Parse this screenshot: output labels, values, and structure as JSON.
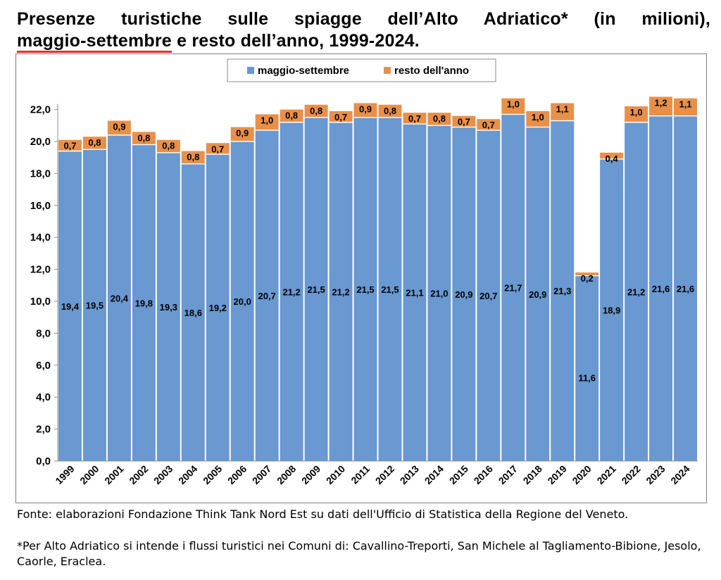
{
  "title": {
    "line1": "Presenze turistiche sulle spiagge dell’Alto Adriatico* (in milioni),",
    "line2_highlight": "maggio-settembre",
    "line2_rest": " e resto dell’anno, 1999-2024."
  },
  "colors": {
    "highlight_underline": "#e03030",
    "series_main": "#6a98d0",
    "series_rest": "#e8904a",
    "frame": "#7f7f7f"
  },
  "chart_data": {
    "type": "bar",
    "stacked": true,
    "categories": [
      "1999",
      "2000",
      "2001",
      "2002",
      "2003",
      "2004",
      "2005",
      "2006",
      "2007",
      "2008",
      "2009",
      "2010",
      "2011",
      "2012",
      "2013",
      "2014",
      "2015",
      "2016",
      "2017",
      "2018",
      "2019",
      "2020",
      "2021",
      "2022",
      "2023",
      "2024"
    ],
    "series": [
      {
        "name": "maggio-settembre",
        "color": "#6a98d0",
        "values": [
          19.4,
          19.5,
          20.4,
          19.8,
          19.3,
          18.6,
          19.2,
          20.0,
          20.7,
          21.2,
          21.5,
          21.2,
          21.5,
          21.5,
          21.1,
          21.0,
          20.9,
          20.7,
          21.7,
          20.9,
          21.3,
          11.6,
          18.9,
          21.2,
          21.6,
          21.6
        ]
      },
      {
        "name": "resto dell'anno",
        "color": "#e8904a",
        "values": [
          0.7,
          0.8,
          0.9,
          0.8,
          0.8,
          0.8,
          0.7,
          0.9,
          1.0,
          0.8,
          0.8,
          0.7,
          0.9,
          0.8,
          0.7,
          0.8,
          0.7,
          0.7,
          1.0,
          1.0,
          1.1,
          0.2,
          0.4,
          1.0,
          1.2,
          1.1
        ]
      }
    ],
    "ylim": [
      0,
      22
    ],
    "yticks": [
      0,
      2,
      4,
      6,
      8,
      10,
      12,
      14,
      16,
      18,
      20,
      22
    ],
    "ytick_labels": [
      "0,0",
      "2,0",
      "4,0",
      "6,0",
      "8,0",
      "10,0",
      "12,0",
      "14,0",
      "16,0",
      "18,0",
      "20,0",
      "22,0"
    ],
    "value_labels_main": [
      "19,4",
      "19,5",
      "20,4",
      "19,8",
      "19,3",
      "18,6",
      "19,2",
      "20,0",
      "20,7",
      "21,2",
      "21,5",
      "21,2",
      "21,5",
      "21,5",
      "21,1",
      "21,0",
      "20,9",
      "20,7",
      "21,7",
      "20,9",
      "21,3",
      "11,6",
      "18,9",
      "21,2",
      "21,6",
      "21,6"
    ],
    "value_labels_rest": [
      "0,7",
      "0,8",
      "0,9",
      "0,8",
      "0,8",
      "0,8",
      "0,7",
      "0,9",
      "1,0",
      "0,8",
      "0,8",
      "0,7",
      "0,9",
      "0,8",
      "0,7",
      "0,8",
      "0,7",
      "0,7",
      "1,0",
      "1,0",
      "1,1",
      "0,2",
      "0,4",
      "1,0",
      "1,2",
      "1,1"
    ],
    "legend_position": "top-center",
    "grid": false,
    "xlabel": "",
    "ylabel": ""
  },
  "footnotes": {
    "source": "Fonte: elaborazioni Fondazione Think Tank Nord Est su dati dell'Ufficio di Statistica della Regione del Veneto.",
    "definition": "*Per Alto Adriatico si intende i flussi turistici nei Comuni di: Cavallino-Treporti, San Michele al Tagliamento-Bibione, Jesolo, Caorle, Eraclea."
  }
}
